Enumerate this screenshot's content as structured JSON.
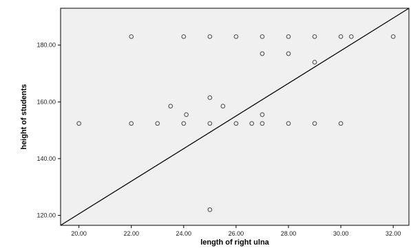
{
  "chart_data": {
    "type": "scatter",
    "xlabel": "length of right ulna",
    "ylabel": "height of students",
    "x_range": [
      19.3,
      32.6
    ],
    "y_range": [
      116.5,
      193
    ],
    "x_ticks": [
      20,
      22,
      24,
      26,
      28,
      30,
      32
    ],
    "x_tick_labels": [
      "20.00",
      "22.00",
      "24.00",
      "26.00",
      "28.00",
      "30.00",
      "32.00"
    ],
    "y_ticks": [
      120,
      140,
      160,
      180
    ],
    "y_tick_labels": [
      "120.00",
      "140.00",
      "160.00",
      "180.00"
    ],
    "grid": false,
    "legend": "none",
    "plot_background": "#f0f0f0",
    "marker_color": "#555555",
    "line_color": "#000000",
    "points": [
      {
        "x": 20.0,
        "y": 152.4
      },
      {
        "x": 22.0,
        "y": 152.4
      },
      {
        "x": 22.0,
        "y": 183.0
      },
      {
        "x": 23.0,
        "y": 152.4
      },
      {
        "x": 23.5,
        "y": 158.5
      },
      {
        "x": 24.0,
        "y": 152.4
      },
      {
        "x": 24.0,
        "y": 183.0
      },
      {
        "x": 24.1,
        "y": 155.5
      },
      {
        "x": 25.0,
        "y": 122.0
      },
      {
        "x": 25.0,
        "y": 152.4
      },
      {
        "x": 25.0,
        "y": 161.5
      },
      {
        "x": 25.0,
        "y": 183.0
      },
      {
        "x": 25.5,
        "y": 158.5
      },
      {
        "x": 26.0,
        "y": 152.4
      },
      {
        "x": 26.0,
        "y": 183.0
      },
      {
        "x": 26.6,
        "y": 152.4
      },
      {
        "x": 27.0,
        "y": 152.4
      },
      {
        "x": 27.0,
        "y": 155.5
      },
      {
        "x": 27.0,
        "y": 177.0
      },
      {
        "x": 27.0,
        "y": 183.0
      },
      {
        "x": 28.0,
        "y": 152.4
      },
      {
        "x": 28.0,
        "y": 177.0
      },
      {
        "x": 28.0,
        "y": 183.0
      },
      {
        "x": 29.0,
        "y": 152.4
      },
      {
        "x": 29.0,
        "y": 174.0
      },
      {
        "x": 29.0,
        "y": 183.0
      },
      {
        "x": 30.0,
        "y": 152.4
      },
      {
        "x": 30.0,
        "y": 183.0
      },
      {
        "x": 30.4,
        "y": 183.0
      },
      {
        "x": 32.0,
        "y": 183.0
      }
    ],
    "fit_line": {
      "x": [
        19.3,
        32.6
      ],
      "y": [
        116.5,
        193.0
      ]
    }
  }
}
